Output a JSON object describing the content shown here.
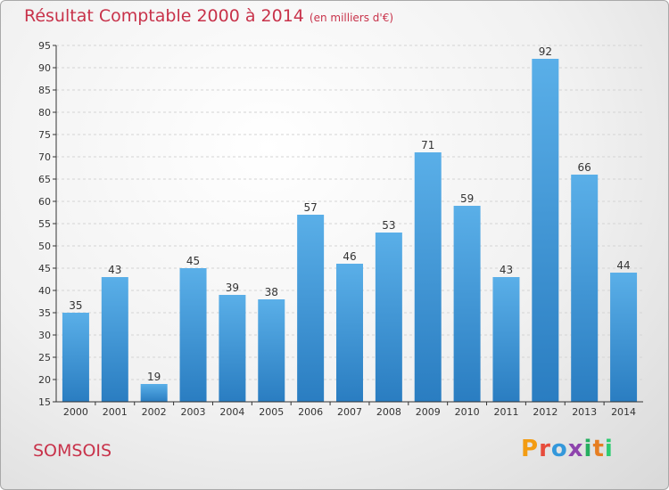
{
  "header": {
    "title": "Résultat Comptable 2000 à 2014",
    "subtitle": "(en milliers d'€)"
  },
  "footer": {
    "commune": "SOMSOIS",
    "brand": "Proxiti"
  },
  "colors": {
    "title": "#c8324a",
    "bar_top": "#5aafe8",
    "bar_bottom": "#2a7dc1",
    "axis": "#333333",
    "grid": "#d8d8d8"
  },
  "chart_data": {
    "type": "bar",
    "categories": [
      "2000",
      "2001",
      "2002",
      "2003",
      "2004",
      "2005",
      "2006",
      "2007",
      "2008",
      "2009",
      "2010",
      "2011",
      "2012",
      "2013",
      "2014"
    ],
    "values": [
      35,
      43,
      19,
      45,
      39,
      38,
      57,
      46,
      53,
      71,
      59,
      43,
      92,
      66,
      44
    ],
    "title": "Résultat Comptable 2000 à 2014",
    "subtitle": "(en milliers d'€)",
    "ylim": [
      15,
      95
    ],
    "yticks": [
      15,
      20,
      25,
      30,
      35,
      40,
      45,
      50,
      55,
      60,
      65,
      70,
      75,
      80,
      85,
      90,
      95
    ],
    "grid": "horizontal dashed",
    "legend": "none"
  }
}
